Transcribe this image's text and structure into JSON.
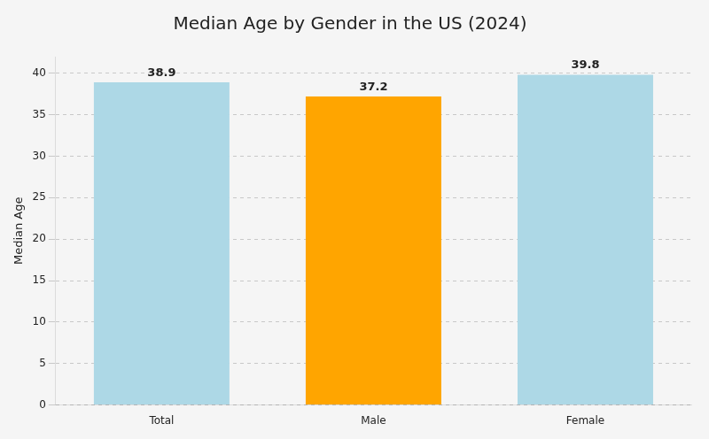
{
  "chart_data": {
    "type": "bar",
    "title": "Median Age by Gender in the US (2024)",
    "ylabel": "Median Age",
    "categories": [
      "Total",
      "Male",
      "Female"
    ],
    "values": [
      38.9,
      37.2,
      39.8
    ],
    "colors": [
      "#ADD8E6",
      "#FFA500",
      "#ADD8E6"
    ],
    "ylim": [
      0,
      42
    ],
    "yticks": [
      0,
      5,
      10,
      15,
      20,
      25,
      30,
      35,
      40
    ],
    "grid": true,
    "data_labels": true
  }
}
